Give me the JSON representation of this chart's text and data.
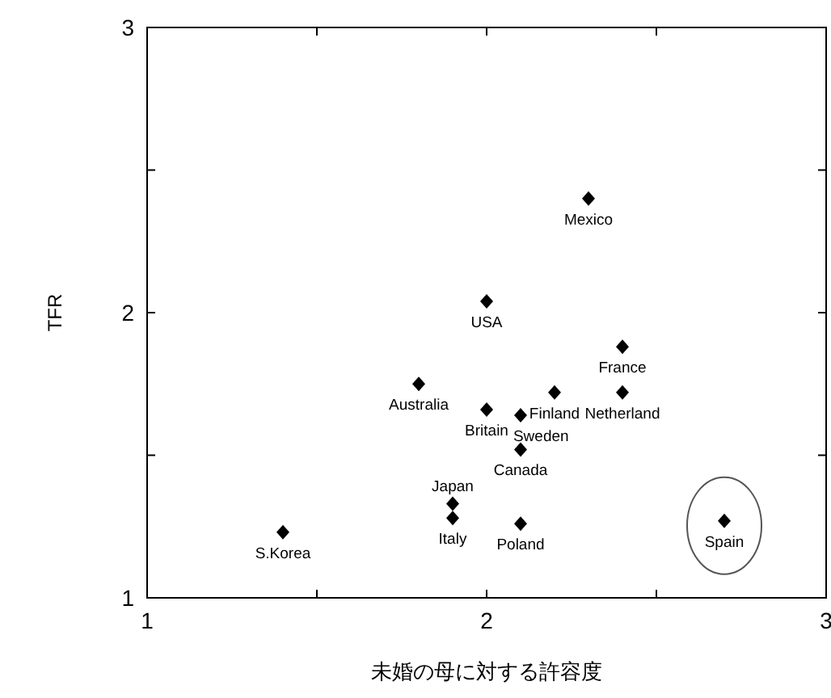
{
  "chart_data": {
    "type": "scatter",
    "xlabel": "未婚の母に対する許容度",
    "ylabel": "TFR",
    "xlim": [
      1,
      3
    ],
    "ylim": [
      1,
      3
    ],
    "xticks": [
      1,
      {
        "value": 1.5,
        "label": null
      },
      2,
      {
        "value": 2.5,
        "label": null
      },
      3
    ],
    "yticks": [
      1,
      {
        "value": 1.5,
        "label": null
      },
      2,
      {
        "value": 2.5,
        "label": null
      },
      3
    ],
    "grid": false,
    "marker": "diamond",
    "x": [
      2.3,
      2.0,
      2.4,
      1.8,
      2.2,
      2.4,
      2.0,
      2.1,
      2.1,
      1.9,
      1.9,
      2.1,
      1.4,
      2.7
    ],
    "series": [
      {
        "color": "#000000",
        "values": [
          2.4,
          2.04,
          1.88,
          1.75,
          1.72,
          1.72,
          1.66,
          1.64,
          1.52,
          1.33,
          1.28,
          1.26,
          1.23,
          1.27
        ]
      }
    ],
    "annotations": [
      {
        "text": "Mexico",
        "x": 2.3,
        "y": 2.4
      },
      {
        "text": "USA",
        "x": 2.0,
        "y": 2.04
      },
      {
        "text": "France",
        "x": 2.4,
        "y": 1.88
      },
      {
        "text": "Australia",
        "x": 1.8,
        "y": 1.75
      },
      {
        "text": "Finland",
        "x": 2.2,
        "y": 1.72
      },
      {
        "text": "Netherland",
        "x": 2.4,
        "y": 1.72
      },
      {
        "text": "Britain",
        "x": 2.0,
        "y": 1.66
      },
      {
        "text": "Sweden",
        "x": 2.1,
        "y": 1.64
      },
      {
        "text": "Canada",
        "x": 2.1,
        "y": 1.52
      },
      {
        "text": "Japan",
        "x": 1.9,
        "y": 1.33
      },
      {
        "text": "Italy",
        "x": 1.9,
        "y": 1.28
      },
      {
        "text": "Poland",
        "x": 2.1,
        "y": 1.26
      },
      {
        "text": "S.Korea",
        "x": 1.4,
        "y": 1.23
      },
      {
        "text": "Spain",
        "x": 2.7,
        "y": 1.27
      }
    ]
  }
}
